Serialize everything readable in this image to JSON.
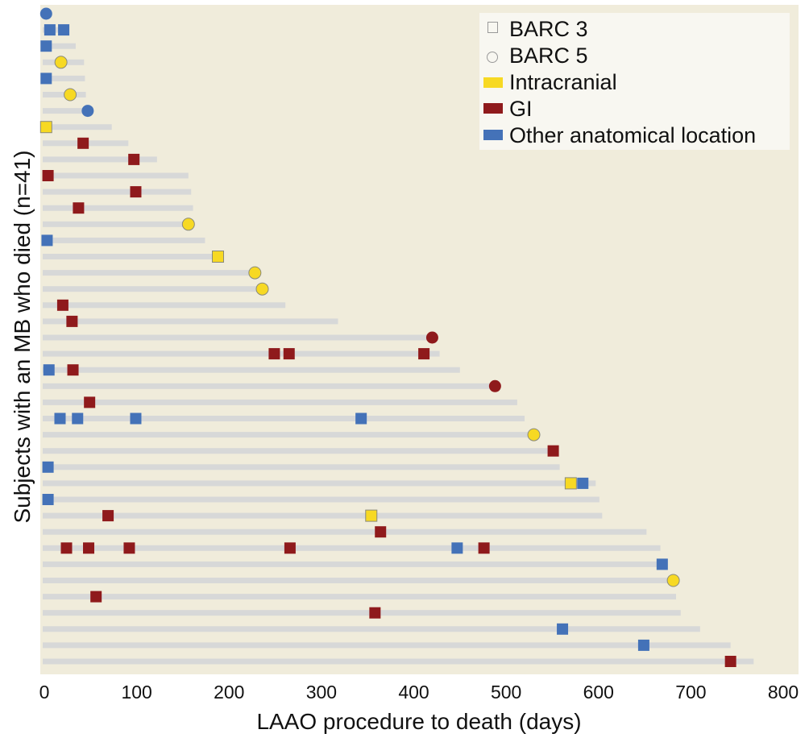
{
  "chart_data": {
    "type": "timeline",
    "xlabel": "LAAO procedure to death (days)",
    "ylabel": "Subjects with an MB who died (n=41)",
    "xlim": [
      0,
      800
    ],
    "xticks": [
      "0",
      "100",
      "200",
      "300",
      "400",
      "500",
      "600",
      "700",
      "800"
    ],
    "grid": false,
    "legend_position": "top-right",
    "legend": [
      {
        "label": "BARC 3",
        "symbol": "square-outline"
      },
      {
        "label": "BARC 5",
        "symbol": "circle-outline"
      },
      {
        "label": "Intracranial",
        "symbol": "swatch",
        "color": "#f7d923"
      },
      {
        "label": "GI",
        "symbol": "swatch",
        "color": "#8f1a1c"
      },
      {
        "label": "Other anatomical location",
        "symbol": "swatch",
        "color": "#4472b8"
      }
    ],
    "colors": {
      "Intracranial": "#f7d923",
      "GI": "#8f1a1c",
      "Other": "#4472b8",
      "bar": "#d7d8d8",
      "plot_bg": "#f0ecdb",
      "legend_bg": "#f8f7f1"
    },
    "subjects": [
      {
        "days_to_death": 2,
        "events": [
          {
            "day": 2,
            "location": "Other",
            "barc": 5
          }
        ]
      },
      {
        "days_to_death": 25,
        "events": [
          {
            "day": 6,
            "location": "Other",
            "barc": 3
          },
          {
            "day": 21,
            "location": "Other",
            "barc": 3
          }
        ]
      },
      {
        "days_to_death": 34,
        "events": [
          {
            "day": 2,
            "location": "Other",
            "barc": 3
          }
        ]
      },
      {
        "days_to_death": 43,
        "events": [
          {
            "day": 18,
            "location": "Intracranial",
            "barc": 5
          }
        ]
      },
      {
        "days_to_death": 44,
        "events": [
          {
            "day": 2,
            "location": "Other",
            "barc": 3
          }
        ]
      },
      {
        "days_to_death": 45,
        "events": [
          {
            "day": 28,
            "location": "Intracranial",
            "barc": 5
          }
        ]
      },
      {
        "days_to_death": 47,
        "events": [
          {
            "day": 47,
            "location": "Other",
            "barc": 5
          }
        ]
      },
      {
        "days_to_death": 73,
        "events": [
          {
            "day": 2,
            "location": "Intracranial",
            "barc": 3
          }
        ]
      },
      {
        "days_to_death": 91,
        "events": [
          {
            "day": 42,
            "location": "GI",
            "barc": 3
          }
        ]
      },
      {
        "days_to_death": 122,
        "events": [
          {
            "day": 97,
            "location": "GI",
            "barc": 3
          }
        ]
      },
      {
        "days_to_death": 156,
        "events": [
          {
            "day": 4,
            "location": "GI",
            "barc": 3
          }
        ]
      },
      {
        "days_to_death": 159,
        "events": [
          {
            "day": 99,
            "location": "GI",
            "barc": 3
          }
        ]
      },
      {
        "days_to_death": 161,
        "events": [
          {
            "day": 37,
            "location": "GI",
            "barc": 3
          }
        ]
      },
      {
        "days_to_death": 154,
        "events": [
          {
            "day": 156,
            "location": "Intracranial",
            "barc": 5
          }
        ]
      },
      {
        "days_to_death": 174,
        "events": [
          {
            "day": 3,
            "location": "Other",
            "barc": 3
          }
        ]
      },
      {
        "days_to_death": 189,
        "events": [
          {
            "day": 188,
            "location": "Intracranial",
            "barc": 3
          }
        ]
      },
      {
        "days_to_death": 226,
        "events": [
          {
            "day": 228,
            "location": "Intracranial",
            "barc": 5
          }
        ]
      },
      {
        "days_to_death": 234,
        "events": [
          {
            "day": 236,
            "location": "Intracranial",
            "barc": 5
          }
        ]
      },
      {
        "days_to_death": 261,
        "events": [
          {
            "day": 20,
            "location": "GI",
            "barc": 3
          }
        ]
      },
      {
        "days_to_death": 318,
        "events": [
          {
            "day": 30,
            "location": "GI",
            "barc": 3
          }
        ]
      },
      {
        "days_to_death": 418,
        "events": [
          {
            "day": 420,
            "location": "GI",
            "barc": 5
          }
        ]
      },
      {
        "days_to_death": 428,
        "events": [
          {
            "day": 249,
            "location": "GI",
            "barc": 3
          },
          {
            "day": 265,
            "location": "GI",
            "barc": 3
          },
          {
            "day": 411,
            "location": "GI",
            "barc": 3
          }
        ]
      },
      {
        "days_to_death": 450,
        "events": [
          {
            "day": 5,
            "location": "Other",
            "barc": 3
          },
          {
            "day": 31,
            "location": "GI",
            "barc": 3
          }
        ]
      },
      {
        "days_to_death": 486,
        "events": [
          {
            "day": 488,
            "location": "GI",
            "barc": 5
          }
        ]
      },
      {
        "days_to_death": 512,
        "events": [
          {
            "day": 49,
            "location": "GI",
            "barc": 3
          }
        ]
      },
      {
        "days_to_death": 520,
        "events": [
          {
            "day": 17,
            "location": "Other",
            "barc": 3
          },
          {
            "day": 36,
            "location": "Other",
            "barc": 3
          },
          {
            "day": 99,
            "location": "Other",
            "barc": 3
          },
          {
            "day": 343,
            "location": "Other",
            "barc": 3
          }
        ]
      },
      {
        "days_to_death": 528,
        "events": [
          {
            "day": 530,
            "location": "Intracranial",
            "barc": 5
          }
        ]
      },
      {
        "days_to_death": 556,
        "events": [
          {
            "day": 551,
            "location": "GI",
            "barc": 3
          }
        ]
      },
      {
        "days_to_death": 558,
        "events": [
          {
            "day": 4,
            "location": "Other",
            "barc": 3
          }
        ]
      },
      {
        "days_to_death": 597,
        "events": [
          {
            "day": 570,
            "location": "Intracranial",
            "barc": 3
          },
          {
            "day": 583,
            "location": "Other",
            "barc": 3
          }
        ]
      },
      {
        "days_to_death": 601,
        "events": [
          {
            "day": 4,
            "location": "Other",
            "barc": 3
          }
        ]
      },
      {
        "days_to_death": 604,
        "events": [
          {
            "day": 69,
            "location": "GI",
            "barc": 3
          },
          {
            "day": 354,
            "location": "Intracranial",
            "barc": 3
          }
        ]
      },
      {
        "days_to_death": 652,
        "events": [
          {
            "day": 364,
            "location": "GI",
            "barc": 3
          }
        ]
      },
      {
        "days_to_death": 667,
        "events": [
          {
            "day": 24,
            "location": "GI",
            "barc": 3
          },
          {
            "day": 48,
            "location": "GI",
            "barc": 3
          },
          {
            "day": 92,
            "location": "GI",
            "barc": 3
          },
          {
            "day": 266,
            "location": "GI",
            "barc": 3
          },
          {
            "day": 447,
            "location": "Other",
            "barc": 3
          },
          {
            "day": 476,
            "location": "GI",
            "barc": 3
          }
        ]
      },
      {
        "days_to_death": 675,
        "events": [
          {
            "day": 669,
            "location": "Other",
            "barc": 3
          }
        ]
      },
      {
        "days_to_death": 679,
        "events": [
          {
            "day": 681,
            "location": "Intracranial",
            "barc": 5
          }
        ]
      },
      {
        "days_to_death": 684,
        "events": [
          {
            "day": 56,
            "location": "GI",
            "barc": 3
          }
        ]
      },
      {
        "days_to_death": 689,
        "events": [
          {
            "day": 358,
            "location": "GI",
            "barc": 3
          }
        ]
      },
      {
        "days_to_death": 710,
        "events": [
          {
            "day": 561,
            "location": "Other",
            "barc": 3
          }
        ]
      },
      {
        "days_to_death": 743,
        "events": [
          {
            "day": 649,
            "location": "Other",
            "barc": 3
          }
        ]
      },
      {
        "days_to_death": 768,
        "events": [
          {
            "day": 743,
            "location": "GI",
            "barc": 3
          }
        ]
      }
    ]
  }
}
